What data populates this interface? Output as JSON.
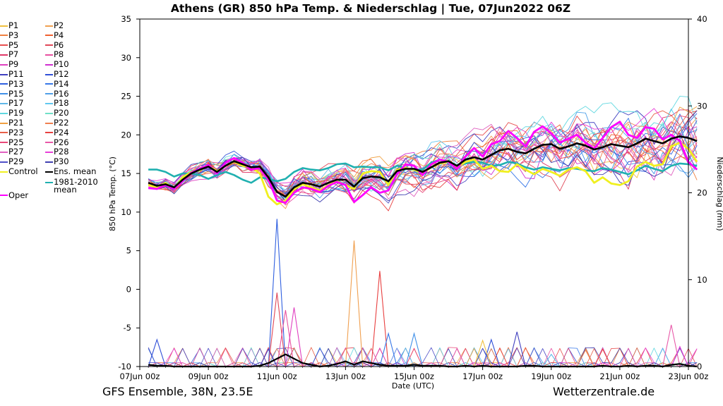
{
  "chart_data": {
    "type": "line",
    "title": "Athens  (GR)  850 hPa Temp. & Niederschlag | Tue, 07Jun2022 06Z",
    "ylabel": "850 hPa Temp. (°C)",
    "y2label": "Niederschlag (mm)",
    "xlabel": "Date (UTC)",
    "ylim": [
      -10,
      35
    ],
    "y2lim": [
      0,
      40
    ],
    "yticks": [
      -10,
      -5,
      0,
      5,
      10,
      15,
      20,
      25,
      30,
      35
    ],
    "y2ticks": [
      0,
      10,
      20,
      30,
      40
    ],
    "xlim": [
      0,
      16
    ],
    "xticks": [
      {
        "x": 0,
        "label": "07Jun 00z"
      },
      {
        "x": 2,
        "label": "09Jun 00z"
      },
      {
        "x": 4,
        "label": "11Jun 00z"
      },
      {
        "x": 6,
        "label": "13Jun 00z"
      },
      {
        "x": 8,
        "label": "15Jun 00z"
      },
      {
        "x": 10,
        "label": "17Jun 00z"
      },
      {
        "x": 12,
        "label": "19Jun 00z"
      },
      {
        "x": 14,
        "label": "21Jun 00z"
      },
      {
        "x": 16,
        "label": "23Jun 00z"
      }
    ],
    "x_start": 0.25,
    "x_step": 0.25,
    "members": [
      {
        "name": "P1",
        "color": "#f0c040"
      },
      {
        "name": "P2",
        "color": "#f0a050"
      },
      {
        "name": "P3",
        "color": "#f08040"
      },
      {
        "name": "P4",
        "color": "#f06030"
      },
      {
        "name": "P5",
        "color": "#e85050"
      },
      {
        "name": "P6",
        "color": "#e04858"
      },
      {
        "name": "P7",
        "color": "#e03868"
      },
      {
        "name": "P8",
        "color": "#e850a0"
      },
      {
        "name": "P9",
        "color": "#e040c0"
      },
      {
        "name": "P10",
        "color": "#d030d0"
      },
      {
        "name": "P11",
        "color": "#4040c0"
      },
      {
        "name": "P12",
        "color": "#3050d8"
      },
      {
        "name": "P13",
        "color": "#3060e0"
      },
      {
        "name": "P14",
        "color": "#3878e8"
      },
      {
        "name": "P15",
        "color": "#4090e8"
      },
      {
        "name": "P16",
        "color": "#50a0e8"
      },
      {
        "name": "P17",
        "color": "#60b8e8"
      },
      {
        "name": "P18",
        "color": "#60c8f0"
      },
      {
        "name": "P19",
        "color": "#60d8e0"
      },
      {
        "name": "P20",
        "color": "#70e0c8"
      },
      {
        "name": "P21",
        "color": "#f0a040"
      },
      {
        "name": "P22",
        "color": "#f08050"
      },
      {
        "name": "P23",
        "color": "#e86048"
      },
      {
        "name": "P24",
        "color": "#e84040"
      },
      {
        "name": "P25",
        "color": "#e84878"
      },
      {
        "name": "P26",
        "color": "#e858a8"
      },
      {
        "name": "P27",
        "color": "#e060c0"
      },
      {
        "name": "P28",
        "color": "#e840d8"
      },
      {
        "name": "P29",
        "color": "#5050c8"
      },
      {
        "name": "P30",
        "color": "#4040b0"
      }
    ],
    "legend_extra": [
      {
        "name": "Control",
        "color": "#f0f020"
      },
      {
        "name": "Ens. mean",
        "color": "#000000"
      },
      {
        "name": "Oper",
        "color": "#ff00ff"
      },
      {
        "name": "1981-2010 mean",
        "lines": [
          "1981-2010",
          "mean"
        ],
        "color": "#20b0b0"
      }
    ],
    "temp_ens_mean": [
      13.8,
      13.4,
      13.6,
      13.2,
      14.2,
      15.0,
      15.5,
      15.9,
      15.2,
      16.0,
      16.6,
      16.2,
      15.8,
      15.9,
      14.5,
      12.6,
      12.0,
      13.2,
      13.8,
      13.6,
      13.3,
      13.8,
      14.2,
      14.2,
      13.3,
      14.4,
      14.6,
      14.5,
      14.0,
      15.3,
      15.6,
      15.6,
      15.2,
      15.8,
      16.4,
      16.6,
      16.0,
      16.8,
      17.1,
      16.8,
      17.4,
      18.0,
      18.2,
      17.8,
      17.6,
      18.2,
      18.7,
      18.8,
      18.2,
      18.5,
      18.9,
      18.6,
      18.1,
      18.4,
      18.8,
      18.6,
      18.4,
      18.9,
      19.5,
      19.2,
      18.9,
      19.5,
      19.8,
      19.6,
      19.2
    ],
    "temp_climate": [
      15.5,
      15.5,
      15.2,
      14.6,
      15.0,
      15.0,
      14.8,
      14.3,
      14.8,
      15.2,
      14.8,
      14.2,
      13.8,
      14.5,
      14.3,
      14.0,
      14.3,
      15.2,
      15.7,
      15.5,
      15.4,
      15.7,
      16.2,
      16.3,
      15.8,
      15.9,
      15.8,
      15.8,
      15.4,
      16.0,
      15.7,
      15.5,
      15.5,
      16.4,
      16.8,
      16.4,
      16.0,
      16.3,
      16.5,
      16.4,
      16.0,
      16.1,
      16.5,
      16.3,
      15.8,
      15.5,
      15.8,
      15.6,
      15.4,
      15.7,
      15.6,
      15.4,
      15.3,
      15.7,
      15.5,
      15.2,
      14.9,
      15.4,
      16.0,
      15.6,
      15.3,
      16.0,
      16.3,
      16.2,
      16.0
    ],
    "temp_oper": [
      13.1,
      13.0,
      13.5,
      13.0,
      14.0,
      15.1,
      15.6,
      16.1,
      15.0,
      16.4,
      17.0,
      16.4,
      15.5,
      15.7,
      14.2,
      11.5,
      11.2,
      12.5,
      13.2,
      13.0,
      12.6,
      13.4,
      13.9,
      13.5,
      11.3,
      12.2,
      13.2,
      12.5,
      12.8,
      14.9,
      16.2,
      16.0,
      14.8,
      16.2,
      16.8,
      16.5,
      15.6,
      17.2,
      18.3,
      17.2,
      18.8,
      19.2,
      20.5,
      19.6,
      18.5,
      20.4,
      21.1,
      20.2,
      19.0,
      19.5,
      20.0,
      19.0,
      18.2,
      19.6,
      21.0,
      21.7,
      20.0,
      19.6,
      21.0,
      20.8,
      19.4,
      20.0,
      19.2,
      16.5,
      15.5
    ],
    "temp_control": [
      13.5,
      13.2,
      13.8,
      13.0,
      14.5,
      15.2,
      15.4,
      16.0,
      15.3,
      16.0,
      16.5,
      16.0,
      15.8,
      15.0,
      12.0,
      11.0,
      11.5,
      13.0,
      13.6,
      13.2,
      12.8,
      13.5,
      14.0,
      13.5,
      13.0,
      15.0,
      15.3,
      15.2,
      13.5,
      15.5,
      15.7,
      15.5,
      15.0,
      15.8,
      16.3,
      16.5,
      15.8,
      16.5,
      16.8,
      15.6,
      16.0,
      15.3,
      15.2,
      16.2,
      15.5,
      14.9,
      15.6,
      15.2,
      14.7,
      15.5,
      15.8,
      15.3,
      13.8,
      14.5,
      13.7,
      13.5,
      14.0,
      15.9,
      16.5,
      16.0,
      16.2,
      18.5,
      19.0,
      18.2,
      16.5
    ],
    "precip_ens_mean": [
      0.2,
      0.1,
      0.1,
      0.0,
      0.0,
      0.0,
      0.0,
      0.0,
      0.0,
      0.0,
      0.0,
      0.0,
      0.0,
      0.1,
      0.4,
      0.9,
      1.4,
      0.9,
      0.4,
      0.2,
      0.0,
      0.1,
      0.3,
      0.6,
      0.2,
      0.6,
      0.4,
      0.2,
      0.1,
      0.1,
      0.1,
      0.2,
      0.1,
      0.1,
      0.1,
      0.0,
      0.0,
      0.1,
      0.0,
      0.1,
      0.0,
      0.0,
      0.0,
      0.0,
      0.1,
      0.1,
      0.0,
      0.0,
      0.0,
      0.0,
      0.0,
      0.0,
      0.0,
      0.1,
      0.0,
      0.0,
      0.1,
      0.0,
      0.1,
      0.1,
      0.0,
      0.2,
      0.3,
      0.1,
      0.0
    ],
    "precip_member_spikes": [
      {
        "member": "P12",
        "x": 0.5,
        "value": 3.1
      },
      {
        "member": "P13",
        "x": 4.0,
        "value": 17.0
      },
      {
        "member": "P11",
        "x": 3.75,
        "value": 2.0
      },
      {
        "member": "P6",
        "x": 4.0,
        "value": 8.5
      },
      {
        "member": "P8",
        "x": 4.25,
        "value": 6.5
      },
      {
        "member": "P9",
        "x": 4.5,
        "value": 6.8
      },
      {
        "member": "P2",
        "x": 6.25,
        "value": 14.5
      },
      {
        "member": "P24",
        "x": 7.0,
        "value": 11.0
      },
      {
        "member": "P14",
        "x": 7.25,
        "value": 3.8
      },
      {
        "member": "P15",
        "x": 8.0,
        "value": 3.8
      },
      {
        "member": "P12",
        "x": 10.25,
        "value": 3.1
      },
      {
        "member": "P1",
        "x": 10.0,
        "value": 3.0
      },
      {
        "member": "P11",
        "x": 11.0,
        "value": 4.0
      },
      {
        "member": "P17",
        "x": 12.0,
        "value": 1.4
      },
      {
        "member": "P22",
        "x": 13.0,
        "value": 1.9
      },
      {
        "member": "P24",
        "x": 13.5,
        "value": 2.0
      },
      {
        "member": "P26",
        "x": 15.5,
        "value": 4.8
      },
      {
        "member": "P28",
        "x": 15.75,
        "value": 2.3
      }
    ],
    "footer_left": "GFS Ensemble, 38N, 23.5E",
    "footer_right": "Wetterzentrale.de"
  }
}
